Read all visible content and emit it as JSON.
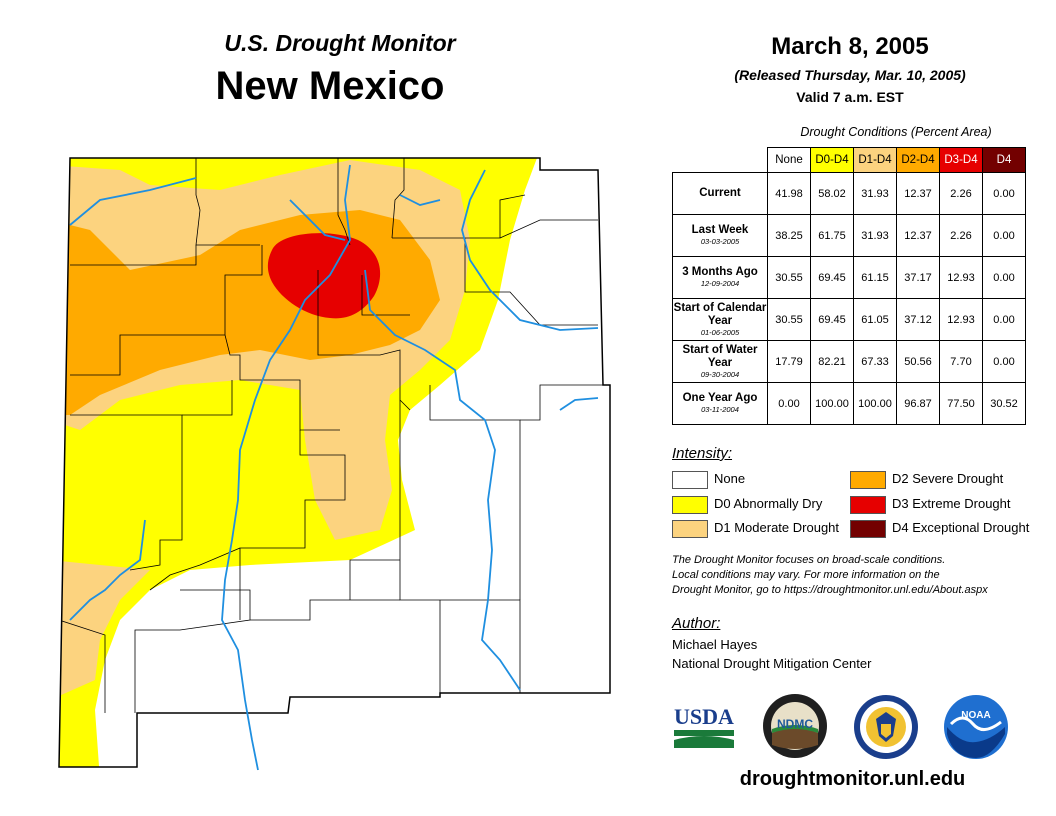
{
  "title": "U.S. Drought Monitor",
  "state": "New Mexico",
  "date": "March 8, 2005",
  "released": "(Released Thursday, Mar. 10, 2005)",
  "valid": "Valid 7 a.m. EST",
  "table": {
    "caption": "Drought Conditions (Percent Area)",
    "headers": [
      "None",
      "D0-D4",
      "D1-D4",
      "D2-D4",
      "D3-D4",
      "D4"
    ],
    "rows": [
      {
        "label": "Current",
        "sub": "",
        "values": [
          "41.98",
          "58.02",
          "31.93",
          "12.37",
          "2.26",
          "0.00"
        ]
      },
      {
        "label": "Last Week",
        "sub": "03-03-2005",
        "values": [
          "38.25",
          "61.75",
          "31.93",
          "12.37",
          "2.26",
          "0.00"
        ]
      },
      {
        "label": "3 Months Ago",
        "sub": "12-09-2004",
        "values": [
          "30.55",
          "69.45",
          "61.15",
          "37.17",
          "12.93",
          "0.00"
        ]
      },
      {
        "label": "Start of Calendar Year",
        "sub": "01-06-2005",
        "values": [
          "30.55",
          "69.45",
          "61.05",
          "37.12",
          "12.93",
          "0.00"
        ]
      },
      {
        "label": "Start of Water Year",
        "sub": "09-30-2004",
        "values": [
          "17.79",
          "82.21",
          "67.33",
          "50.56",
          "7.70",
          "0.00"
        ]
      },
      {
        "label": "One Year Ago",
        "sub": "03-11-2004",
        "values": [
          "0.00",
          "100.00",
          "100.00",
          "96.87",
          "77.50",
          "30.52"
        ]
      }
    ]
  },
  "legend": {
    "title": "Intensity:",
    "items": [
      {
        "label": "None",
        "color": "#ffffff"
      },
      {
        "label": "D0 Abnormally Dry",
        "color": "#ffff00"
      },
      {
        "label": "D1 Moderate Drought",
        "color": "#fcd37f"
      },
      {
        "label": "D2 Severe Drought",
        "color": "#ffaa00"
      },
      {
        "label": "D3 Extreme Drought",
        "color": "#e60000"
      },
      {
        "label": "D4 Exceptional Drought",
        "color": "#730000"
      }
    ]
  },
  "note": {
    "line1": "The Drought Monitor focuses on broad-scale conditions.",
    "line2": "Local conditions may vary. For more information on the",
    "line3": "Drought Monitor, go to https://droughtmonitor.unl.edu/About.aspx"
  },
  "author": {
    "title": "Author:",
    "name": "Michael Hayes",
    "org": "National Drought Mitigation Center"
  },
  "logos": {
    "usda": "USDA",
    "ndmc": "NDMC",
    "noaa": "NOAA"
  },
  "url": "droughtmonitor.unl.edu",
  "colors": {
    "river": "#1f8fe0",
    "header_d0": "#ffff00",
    "header_d1": "#fcd37f",
    "header_d2": "#ffaa00",
    "header_d3": "#e60000",
    "header_d4": "#730000"
  }
}
